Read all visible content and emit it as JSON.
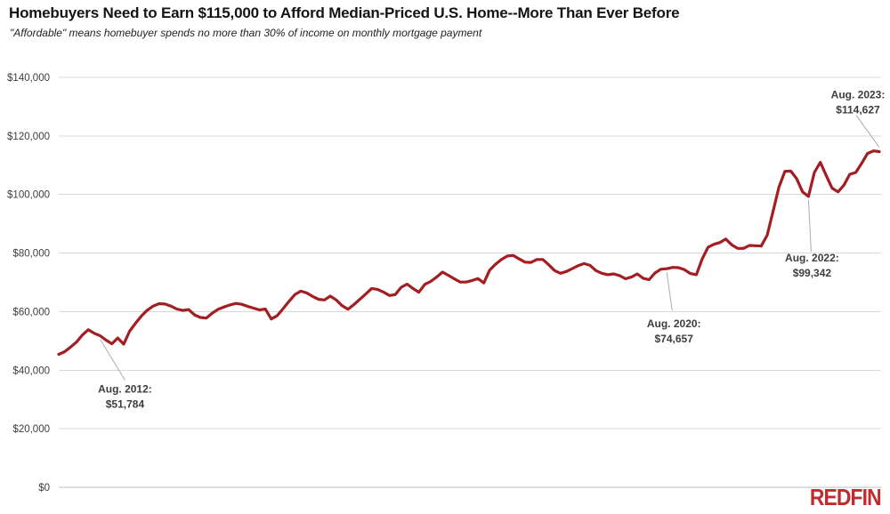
{
  "logo": {
    "text": "REDFIN",
    "color": "#C22B2E"
  },
  "colors": {
    "line": "#A31E22",
    "grid": "#D9D9D9",
    "zero_line": "#BFBFBF",
    "leader": "#ABABAB",
    "tick_text": "#3D3D3D",
    "annotation_text": "#3D3D3D"
  },
  "chart_data": {
    "type": "line",
    "title": "Homebuyers Need to Earn $115,000 to Afford Median-Priced U.S. Home--More Than Ever Before",
    "subtitle": "\"Affordable\" means homebuyer spends no more than 30% of income on monthly mortgage payment",
    "x_start": "Jan 2012",
    "x_end": "Aug 2023",
    "x_unit": "month",
    "x_labels_visible": false,
    "grid": "horizontal",
    "legend": "none",
    "ylim": [
      0,
      140000
    ],
    "y_ticks": [
      {
        "label": "$140,000",
        "value": 140000
      },
      {
        "label": "$120,000",
        "value": 120000
      },
      {
        "label": "$100,000",
        "value": 100000
      },
      {
        "label": "$80,000",
        "value": 80000
      },
      {
        "label": "$60,000",
        "value": 60000
      },
      {
        "label": "$40,000",
        "value": 40000
      },
      {
        "label": "$20,000",
        "value": 20000
      },
      {
        "label": "$0",
        "value": 0
      }
    ],
    "values": [
      45400,
      46300,
      47900,
      49600,
      52000,
      53800,
      52600,
      51784,
      50300,
      49000,
      51000,
      48900,
      53300,
      56000,
      58500,
      60500,
      61900,
      62700,
      62600,
      61900,
      60900,
      60400,
      60700,
      58900,
      58000,
      57800,
      59500,
      60800,
      61600,
      62300,
      62800,
      62500,
      61800,
      61200,
      60600,
      60900,
      57500,
      58600,
      61000,
      63500,
      65800,
      67000,
      66400,
      65200,
      64200,
      64000,
      65300,
      64000,
      62000,
      60800,
      62400,
      64200,
      66000,
      67900,
      67600,
      66700,
      65500,
      65800,
      68300,
      69400,
      67900,
      66600,
      69300,
      70300,
      71800,
      73500,
      72400,
      71200,
      70100,
      70100,
      70600,
      71300,
      69800,
      74200,
      76200,
      77800,
      79000,
      79200,
      78000,
      76900,
      76800,
      77800,
      77800,
      76000,
      74000,
      73100,
      73700,
      74700,
      75700,
      76400,
      75800,
      74000,
      73100,
      72600,
      72900,
      72300,
      71200,
      71800,
      72900,
      71400,
      70900,
      73200,
      74500,
      74657,
      75100,
      75000,
      74300,
      73000,
      72600,
      78000,
      82000,
      83000,
      83600,
      84800,
      82800,
      81600,
      81600,
      82600,
      82500,
      82400,
      86100,
      94200,
      102500,
      107900,
      108000,
      105400,
      100900,
      99342,
      107500,
      111000,
      106500,
      102200,
      100900,
      103200,
      106900,
      107500,
      110600,
      114000,
      114900,
      114627
    ],
    "annotations": [
      {
        "label": "Aug. 2012:",
        "value_label": "$51,784",
        "value": 51784,
        "month_index": 7,
        "text_dx": 28,
        "text_dy": 64,
        "leader_dx": 28,
        "leader_dy": 50
      },
      {
        "label": "Aug. 2020:",
        "value_label": "$74,657",
        "value": 74657,
        "month_index": 103,
        "text_dx": 8,
        "text_dy": 66,
        "leader_dx": 6,
        "leader_dy": 47
      },
      {
        "label": "Aug. 2022:",
        "value_label": "$99,342",
        "value": 99342,
        "month_index": 127,
        "text_dx": 4,
        "text_dy": 73,
        "leader_dx": 3,
        "leader_dy": 62
      },
      {
        "label": "Aug. 2023:",
        "value_label": "$114,627",
        "value": 114627,
        "month_index": 139,
        "text_dx": -24,
        "text_dy": -60,
        "leader_dx": -26,
        "leader_dy": -41
      }
    ]
  }
}
